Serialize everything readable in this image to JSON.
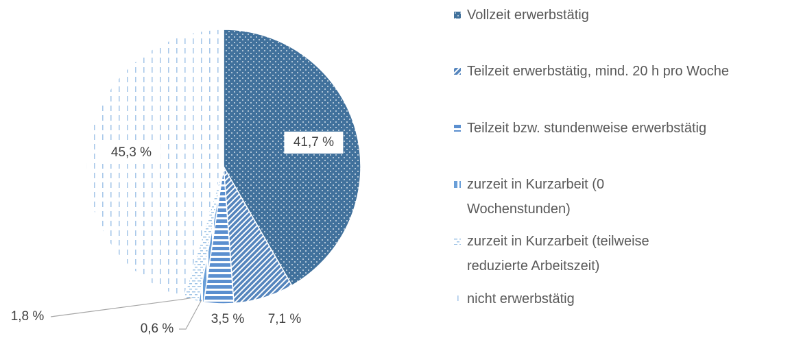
{
  "chart_data": {
    "type": "pie",
    "categories": [
      "Vollzeit erwerbstätig",
      "Teilzeit erwerbstätig, mind. 20 h pro Woche",
      "Teilzeit bzw. stundenweise erwerbstätig",
      "zurzeit in Kurzarbeit (0 Wochenstunden)",
      "zurzeit in Kurzarbeit (teilweise reduzierte Arbeitszeit)",
      "nicht erwerbstätig"
    ],
    "values": [
      41.7,
      7.1,
      3.5,
      0.6,
      1.8,
      45.3
    ],
    "value_labels": [
      "41,7 %",
      "7,1 %",
      "3,5 %",
      "0,6 %",
      "1,8 %",
      "45,3 %"
    ],
    "colors": [
      "#41719c",
      "#5585bd",
      "#5b8fcf",
      "#6a9fd8",
      "#9dc3e6",
      "#a9c9ea"
    ],
    "patterns": [
      "dots",
      "diagonal",
      "horizontal",
      "vertical",
      "dashes",
      "vdashes"
    ],
    "legend": "right"
  }
}
